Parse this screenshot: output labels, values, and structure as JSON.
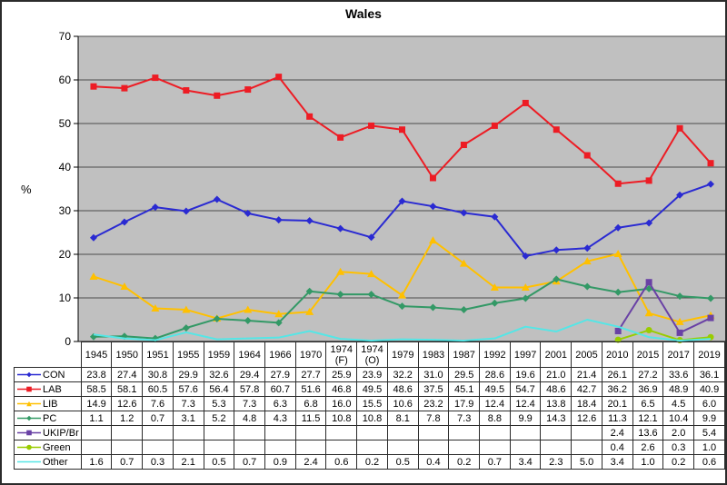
{
  "chart_data": {
    "type": "line",
    "title": "Wales",
    "ylabel": "%",
    "ylim": [
      0,
      70
    ],
    "yticks": [
      0,
      10,
      20,
      30,
      40,
      50,
      60,
      70
    ],
    "grid": "horizontal",
    "legend_position": "data-table-left-column",
    "plot_bg_color": "#c0c0c0",
    "gridline_color": "#4d4d4d",
    "axis_color": "#000000",
    "categories": [
      "1945",
      "1950",
      "1951",
      "1955",
      "1959",
      "1964",
      "1966",
      "1970",
      "1974\n(F)",
      "1974\n(O)",
      "1979",
      "1983",
      "1987",
      "1992",
      "1997",
      "2001",
      "2005",
      "2010",
      "2015",
      "2017",
      "2019"
    ],
    "series": [
      {
        "name": "CON",
        "color": "#2a2ad2",
        "marker": "diamond",
        "values": [
          23.8,
          27.4,
          30.8,
          29.9,
          32.6,
          29.4,
          27.9,
          27.7,
          25.9,
          23.9,
          32.2,
          31.0,
          29.5,
          28.6,
          19.6,
          21.0,
          21.4,
          26.1,
          27.2,
          33.6,
          36.1
        ]
      },
      {
        "name": "LAB",
        "color": "#ed1c24",
        "marker": "square",
        "values": [
          58.5,
          58.1,
          60.5,
          57.6,
          56.4,
          57.8,
          60.7,
          51.6,
          46.8,
          49.5,
          48.6,
          37.5,
          45.1,
          49.5,
          54.7,
          48.6,
          42.7,
          36.2,
          36.9,
          48.9,
          40.9
        ]
      },
      {
        "name": "LIB",
        "color": "#ffc000",
        "marker": "triangle",
        "values": [
          14.9,
          12.6,
          7.6,
          7.3,
          5.3,
          7.3,
          6.3,
          6.8,
          16.0,
          15.5,
          10.6,
          23.2,
          17.9,
          12.4,
          12.4,
          13.8,
          18.4,
          20.1,
          6.5,
          4.5,
          6.0
        ]
      },
      {
        "name": "PC",
        "color": "#339966",
        "marker": "diamond",
        "values": [
          1.1,
          1.2,
          0.7,
          3.1,
          5.2,
          4.8,
          4.3,
          11.5,
          10.8,
          10.8,
          8.1,
          7.8,
          7.3,
          8.8,
          9.9,
          14.3,
          12.6,
          11.3,
          12.1,
          10.4,
          9.9
        ]
      },
      {
        "name": "UKIP/Br",
        "color": "#6941a5",
        "marker": "square",
        "values": [
          null,
          null,
          null,
          null,
          null,
          null,
          null,
          null,
          null,
          null,
          null,
          null,
          null,
          null,
          null,
          null,
          null,
          2.4,
          13.6,
          2.0,
          5.4
        ]
      },
      {
        "name": "Green",
        "color": "#99cc00",
        "marker": "circle",
        "values": [
          null,
          null,
          null,
          null,
          null,
          null,
          null,
          null,
          null,
          null,
          null,
          null,
          null,
          null,
          null,
          null,
          null,
          0.4,
          2.6,
          0.3,
          1.0
        ]
      },
      {
        "name": "Other",
        "color": "#55e6e6",
        "marker": "none",
        "values": [
          1.6,
          0.7,
          0.3,
          2.1,
          0.5,
          0.7,
          0.9,
          2.4,
          0.6,
          0.2,
          0.5,
          0.4,
          0.2,
          0.7,
          3.4,
          2.3,
          5.0,
          3.4,
          1.0,
          0.2,
          0.6
        ]
      }
    ]
  }
}
